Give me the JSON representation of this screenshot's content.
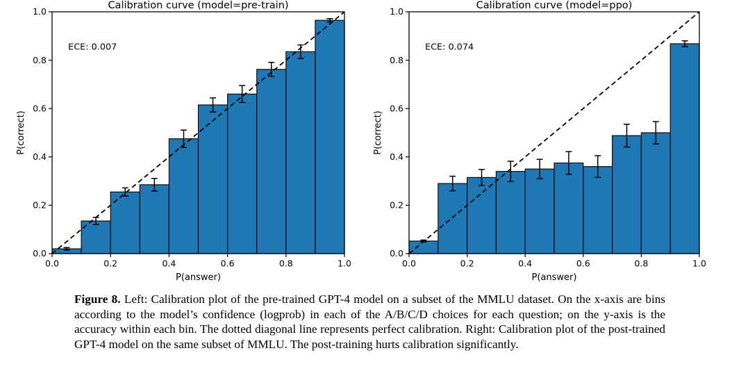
{
  "figure": {
    "caption_label": "Figure 8.",
    "caption_text": "Left: Calibration plot of the pre-trained GPT-4 model on a subset of the MMLU dataset. On the x-axis are bins according to the model’s confidence (logprob) in each of the A/B/C/D choices for each question; on the y-axis is the accuracy within each bin. The dotted diagonal line represents perfect calibration. Right: Calibration plot of the post-trained GPT-4 model on the same subset of MMLU. The post-training hurts calibration significantly."
  },
  "chart_data": [
    {
      "type": "bar",
      "title": "Calibration curve (model=pre-train)",
      "annotation": "ECE: 0.007",
      "xlabel": "P(answer)",
      "ylabel": "P(correct)",
      "xlim": [
        0.0,
        1.0
      ],
      "ylim": [
        0.0,
        1.0
      ],
      "xticks": [
        0.0,
        0.2,
        0.4,
        0.6,
        0.8,
        1.0
      ],
      "yticks": [
        0.0,
        0.2,
        0.4,
        0.6,
        0.8,
        1.0
      ],
      "grid": false,
      "bin_width": 0.1,
      "bin_centers": [
        0.05,
        0.15,
        0.25,
        0.35,
        0.45,
        0.55,
        0.65,
        0.75,
        0.85,
        0.95
      ],
      "values": [
        0.02,
        0.135,
        0.255,
        0.285,
        0.475,
        0.615,
        0.66,
        0.762,
        0.835,
        0.965
      ],
      "errors": [
        0.005,
        0.015,
        0.017,
        0.026,
        0.036,
        0.029,
        0.035,
        0.029,
        0.028,
        0.007
      ],
      "diagonal_line": "perfect calibration (dashed y=x)",
      "bar_color": "#1f77b4",
      "edge_color": "#000000",
      "line_color": "#000000"
    },
    {
      "type": "bar",
      "title": "Calibration curve (model=ppo)",
      "annotation": "ECE: 0.074",
      "xlabel": "P(answer)",
      "ylabel": "P(correct)",
      "xlim": [
        0.0,
        1.0
      ],
      "ylim": [
        0.0,
        1.0
      ],
      "xticks": [
        0.0,
        0.2,
        0.4,
        0.6,
        0.8,
        1.0
      ],
      "yticks": [
        0.0,
        0.2,
        0.4,
        0.6,
        0.8,
        1.0
      ],
      "grid": false,
      "bin_width": 0.1,
      "bin_centers": [
        0.05,
        0.15,
        0.25,
        0.35,
        0.45,
        0.55,
        0.65,
        0.75,
        0.85,
        0.95
      ],
      "values": [
        0.052,
        0.29,
        0.315,
        0.34,
        0.35,
        0.375,
        0.36,
        0.488,
        0.5,
        0.868
      ],
      "errors": [
        0.004,
        0.03,
        0.033,
        0.042,
        0.04,
        0.047,
        0.045,
        0.047,
        0.046,
        0.012
      ],
      "diagonal_line": "perfect calibration (dashed y=x)",
      "bar_color": "#1f77b4",
      "edge_color": "#000000",
      "line_color": "#000000"
    }
  ]
}
